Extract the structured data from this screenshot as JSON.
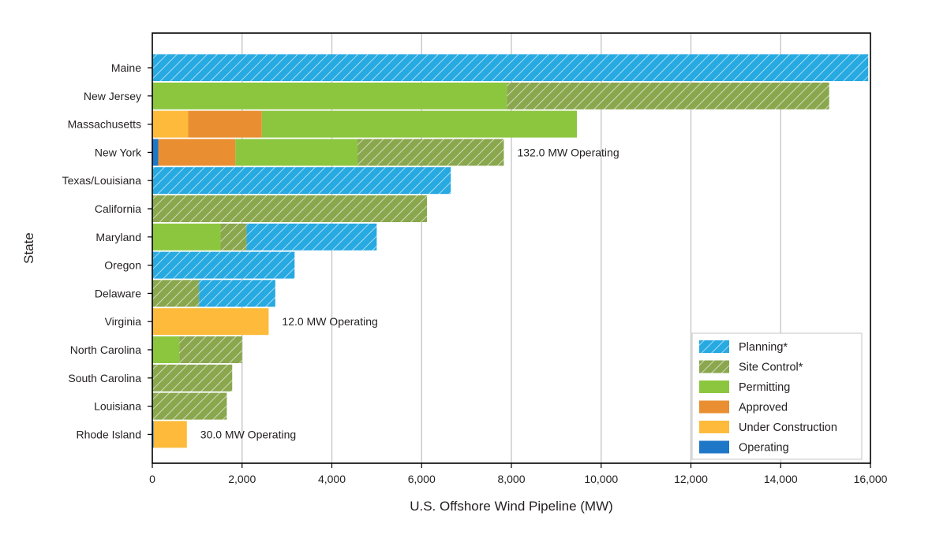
{
  "chart_data": {
    "type": "bar",
    "orientation": "horizontal",
    "stacked": true,
    "xlabel": "U.S. Offshore Wind Pipeline (MW)",
    "ylabel": "State",
    "xlim": [
      0,
      16000
    ],
    "xticks": [
      0,
      2000,
      4000,
      6000,
      8000,
      10000,
      12000,
      14000,
      16000
    ],
    "xtick_labels": [
      "0",
      "2,000",
      "4,000",
      "6,000",
      "8,000",
      "10,000",
      "12,000",
      "14,000",
      "16,000"
    ],
    "grid": "vertical",
    "legend_position": "bottom-right",
    "categories": [
      "Maine",
      "New Jersey",
      "Massachusetts",
      "New York",
      "Texas/Louisiana",
      "California",
      "Maryland",
      "Oregon",
      "Delaware",
      "Virginia",
      "North Carolina",
      "South Carolina",
      "Louisiana",
      "Rhode Island"
    ],
    "series": [
      {
        "name": "Operating",
        "color": "#1f77c8",
        "pattern": "solid",
        "values": [
          0,
          0,
          0,
          132,
          0,
          0,
          0,
          0,
          0,
          12,
          0,
          0,
          0,
          30
        ]
      },
      {
        "name": "Under Construction",
        "color": "#fdba3b",
        "pattern": "solid",
        "values": [
          0,
          0,
          800,
          0,
          0,
          0,
          0,
          0,
          0,
          2580,
          0,
          0,
          0,
          740
        ]
      },
      {
        "name": "Approved",
        "color": "#e98f32",
        "pattern": "solid",
        "values": [
          0,
          0,
          1640,
          1720,
          0,
          0,
          0,
          0,
          0,
          0,
          0,
          0,
          0,
          0
        ]
      },
      {
        "name": "Permitting",
        "color": "#8cc63f",
        "pattern": "solid",
        "values": [
          0,
          7900,
          7020,
          2720,
          0,
          0,
          1520,
          0,
          0,
          0,
          600,
          0,
          0,
          0
        ]
      },
      {
        "name": "Site Control*",
        "color": "#8aa74e",
        "pattern": "hatch",
        "values": [
          0,
          7180,
          0,
          3260,
          0,
          6120,
          580,
          0,
          1040,
          0,
          1400,
          1780,
          1660,
          0
        ]
      },
      {
        "name": "Planning*",
        "color": "#27a9e1",
        "pattern": "hatch",
        "values": [
          15950,
          0,
          0,
          0,
          6650,
          0,
          2900,
          3170,
          1700,
          0,
          0,
          0,
          0,
          0
        ]
      }
    ],
    "legend_order": [
      "Planning*",
      "Site Control*",
      "Permitting",
      "Approved",
      "Under Construction",
      "Operating"
    ],
    "annotations": [
      {
        "category": "New York",
        "text": "132.0 MW Operating"
      },
      {
        "category": "Virginia",
        "text": "12.0 MW Operating"
      },
      {
        "category": "Rhode Island",
        "text": "30.0 MW Operating"
      }
    ]
  }
}
